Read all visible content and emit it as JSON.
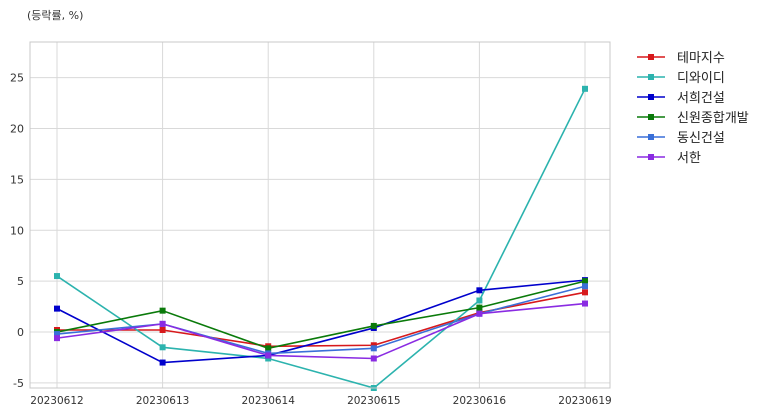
{
  "chart_data": {
    "type": "line",
    "unit_label": "(등락률, %)",
    "categories": [
      "20230612",
      "20230613",
      "20230614",
      "20230615",
      "20230616",
      "20230619"
    ],
    "ylim": [
      -5.5,
      28.5
    ],
    "yticks": [
      -5,
      0,
      5,
      10,
      15,
      20,
      25
    ],
    "grid": true,
    "legend_position": "right",
    "series": [
      {
        "name": "테마지수",
        "color": "#d7191c",
        "values": [
          0.2,
          0.2,
          -1.4,
          -1.3,
          1.9,
          3.9
        ]
      },
      {
        "name": "디와이디",
        "color": "#2cb3ae",
        "values": [
          5.5,
          -1.5,
          -2.6,
          -5.5,
          3.1,
          23.9
        ]
      },
      {
        "name": "서희건설",
        "color": "#0000cc",
        "values": [
          2.3,
          -3.0,
          -2.3,
          0.4,
          4.1,
          5.1
        ]
      },
      {
        "name": "신원종합개발",
        "color": "#0a7a0a",
        "values": [
          0.0,
          2.1,
          -1.6,
          0.6,
          2.4,
          5.0
        ]
      },
      {
        "name": "동신건설",
        "color": "#3a6fd8",
        "values": [
          -0.2,
          0.8,
          -2.1,
          -1.6,
          1.8,
          4.5
        ]
      },
      {
        "name": "서한",
        "color": "#8a2be2",
        "values": [
          -0.6,
          0.8,
          -2.3,
          -2.6,
          1.8,
          2.8
        ]
      }
    ]
  }
}
